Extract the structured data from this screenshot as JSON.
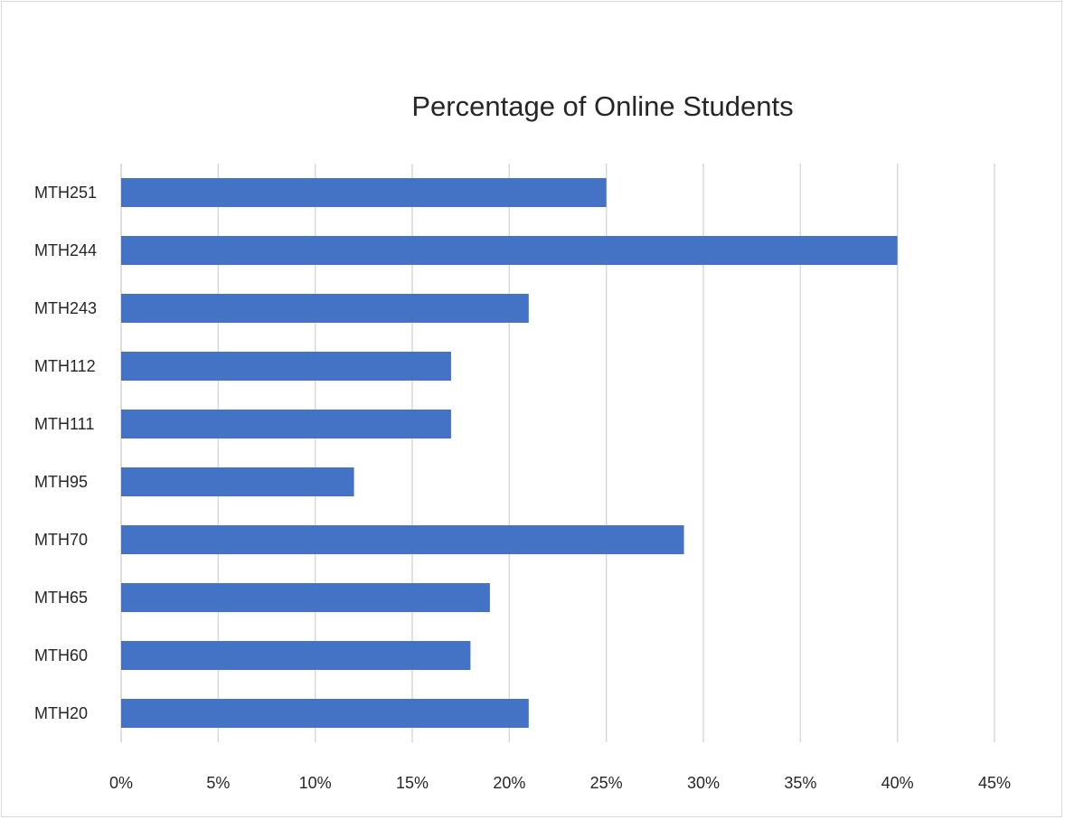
{
  "chart_data": {
    "type": "bar",
    "orientation": "horizontal",
    "title": "Percentage of Online Students",
    "xlabel": "",
    "ylabel": "",
    "categories": [
      "MTH251",
      "MTH244",
      "MTH243",
      "MTH112",
      "MTH111",
      "MTH95",
      "MTH70",
      "MTH65",
      "MTH60",
      "MTH20"
    ],
    "values": [
      25,
      40,
      21,
      17,
      17,
      12,
      29,
      19,
      18,
      21
    ],
    "x_ticks": [
      "0%",
      "5%",
      "10%",
      "15%",
      "20%",
      "25%",
      "30%",
      "35%",
      "40%",
      "45%"
    ],
    "xlim": [
      0,
      45
    ],
    "grid": "vertical",
    "legend": "none",
    "bar_color": "#4472c4"
  }
}
